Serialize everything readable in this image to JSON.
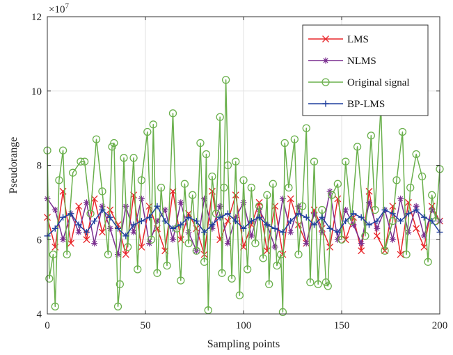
{
  "chart_data": {
    "type": "line",
    "xlabel": "Sampling points",
    "ylabel": "Pseudorange",
    "exponent_label": "×10",
    "exponent_power": "7",
    "xlim": [
      0,
      200
    ],
    "ylim": [
      4,
      12
    ],
    "xticks": [
      "0",
      "50",
      "100",
      "150",
      "200"
    ],
    "yticks": [
      "4",
      "6",
      "8",
      "10",
      "12"
    ],
    "grid": true,
    "legend_position": "top-right",
    "colors": {
      "LMS": "#e8262a",
      "NLMS": "#7a2f8f",
      "Original signal": "#6ab04c",
      "BP-LMS": "#1f3f9e"
    },
    "series": [
      {
        "name": "LMS",
        "marker": "x",
        "x": [
          0,
          4,
          8,
          12,
          16,
          20,
          24,
          28,
          32,
          36,
          40,
          44,
          48,
          52,
          56,
          60,
          64,
          68,
          72,
          76,
          80,
          84,
          88,
          92,
          96,
          100,
          104,
          108,
          112,
          116,
          120,
          124,
          128,
          132,
          136,
          140,
          144,
          148,
          152,
          156,
          160,
          164,
          168,
          172,
          176,
          180,
          184,
          188,
          192,
          196,
          200
        ],
        "y": [
          6.6,
          5.8,
          7.3,
          5.9,
          6.9,
          6.0,
          7.1,
          6.2,
          6.8,
          6.4,
          5.6,
          7.2,
          5.8,
          6.9,
          6.3,
          5.7,
          7.3,
          6.0,
          6.7,
          6.3,
          5.6,
          7.3,
          6.0,
          6.5,
          7.2,
          5.8,
          6.4,
          7.0,
          5.7,
          6.9,
          5.6,
          7.1,
          6.4,
          5.9,
          6.8,
          6.3,
          5.8,
          7.1,
          6.0,
          6.6,
          5.7,
          7.3,
          6.1,
          5.7,
          6.9,
          5.6,
          7.0,
          6.3,
          5.8,
          6.9,
          6.5
        ]
      },
      {
        "name": "NLMS",
        "marker": "asterisk",
        "x": [
          0,
          4,
          8,
          12,
          16,
          20,
          24,
          28,
          32,
          36,
          40,
          44,
          48,
          52,
          56,
          60,
          64,
          68,
          72,
          76,
          80,
          84,
          88,
          92,
          96,
          100,
          104,
          108,
          112,
          116,
          120,
          124,
          128,
          132,
          136,
          140,
          144,
          148,
          152,
          156,
          160,
          164,
          168,
          172,
          176,
          180,
          184,
          188,
          192,
          196,
          200
        ],
        "y": [
          7.1,
          6.8,
          6.0,
          6.7,
          6.2,
          7.0,
          5.9,
          6.9,
          6.3,
          5.6,
          6.9,
          6.2,
          7.1,
          5.9,
          6.5,
          6.8,
          6.0,
          7.0,
          6.2,
          5.7,
          7.1,
          6.3,
          6.9,
          5.9,
          6.6,
          7.0,
          6.1,
          6.8,
          6.4,
          5.8,
          7.1,
          6.2,
          6.9,
          5.9,
          6.7,
          6.2,
          7.3,
          6.0,
          6.8,
          6.4,
          5.9,
          7.0,
          6.3,
          6.8,
          6.0,
          7.1,
          6.2,
          6.9,
          6.1,
          6.8,
          6.5
        ]
      },
      {
        "name": "Original signal",
        "marker": "circle",
        "x": [
          0,
          1,
          3,
          4,
          6,
          8,
          10,
          13,
          17,
          19,
          22,
          25,
          28,
          31,
          33,
          34,
          36,
          37,
          39,
          41,
          44,
          46,
          48,
          51,
          53,
          54,
          56,
          58,
          61,
          64,
          66,
          68,
          70,
          72,
          74,
          76,
          78,
          80,
          81,
          82,
          84,
          86,
          88,
          89,
          90,
          91,
          92,
          94,
          96,
          98,
          100,
          102,
          104,
          106,
          108,
          110,
          112,
          113,
          115,
          117,
          119,
          120,
          121,
          123,
          126,
          128,
          130,
          132,
          134,
          136,
          138,
          140,
          142,
          143,
          145,
          148,
          150,
          152,
          155,
          158,
          162,
          165,
          167,
          170,
          172,
          176,
          178,
          181,
          183,
          185,
          188,
          191,
          194,
          196,
          198,
          200
        ],
        "y": [
          8.4,
          4.95,
          5.6,
          4.2,
          7.6,
          8.4,
          5.6,
          7.8,
          8.1,
          8.1,
          6.7,
          8.7,
          7.3,
          5.6,
          8.5,
          8.6,
          4.2,
          4.8,
          8.2,
          5.8,
          8.2,
          5.2,
          7.6,
          8.9,
          6.0,
          9.1,
          5.1,
          7.4,
          5.3,
          9.4,
          6.3,
          4.9,
          7.5,
          5.9,
          7.2,
          5.7,
          8.6,
          5.4,
          8.3,
          4.1,
          7.7,
          6.7,
          9.3,
          5.1,
          7.4,
          10.3,
          8.0,
          4.95,
          8.1,
          4.5,
          7.6,
          5.2,
          7.4,
          5.9,
          6.9,
          5.5,
          7.2,
          4.8,
          7.5,
          5.3,
          5.6,
          4.05,
          8.6,
          7.4,
          8.7,
          5.6,
          6.9,
          9.0,
          4.85,
          8.1,
          4.8,
          6.8,
          4.85,
          4.75,
          7.2,
          7.5,
          6.0,
          8.1,
          6.5,
          8.5,
          6.1,
          8.8,
          6.8,
          9.6,
          5.7,
          6.5,
          7.6,
          8.9,
          5.6,
          7.4,
          8.3,
          7.7,
          5.4,
          7.2,
          6.5,
          7.9
        ]
      },
      {
        "name": "BP-LMS",
        "marker": "plus",
        "x": [
          0,
          4,
          8,
          12,
          16,
          20,
          24,
          28,
          32,
          36,
          40,
          44,
          48,
          52,
          56,
          60,
          64,
          68,
          72,
          76,
          80,
          84,
          88,
          92,
          96,
          100,
          104,
          108,
          112,
          116,
          120,
          124,
          128,
          132,
          136,
          140,
          144,
          148,
          152,
          156,
          160,
          164,
          168,
          172,
          176,
          180,
          184,
          188,
          192,
          196,
          200
        ],
        "y": [
          6.1,
          6.3,
          6.6,
          6.7,
          6.4,
          6.2,
          6.5,
          6.8,
          6.6,
          6.3,
          6.1,
          6.4,
          6.5,
          6.6,
          6.9,
          6.5,
          6.3,
          6.4,
          6.6,
          6.5,
          6.2,
          6.4,
          6.6,
          6.7,
          6.5,
          6.3,
          6.5,
          6.6,
          6.4,
          6.3,
          6.2,
          6.5,
          6.7,
          6.6,
          6.4,
          6.6,
          6.3,
          6.2,
          6.5,
          6.7,
          6.6,
          6.4,
          6.5,
          6.8,
          6.7,
          6.5,
          6.7,
          6.8,
          6.6,
          6.5,
          6.2
        ]
      }
    ]
  }
}
